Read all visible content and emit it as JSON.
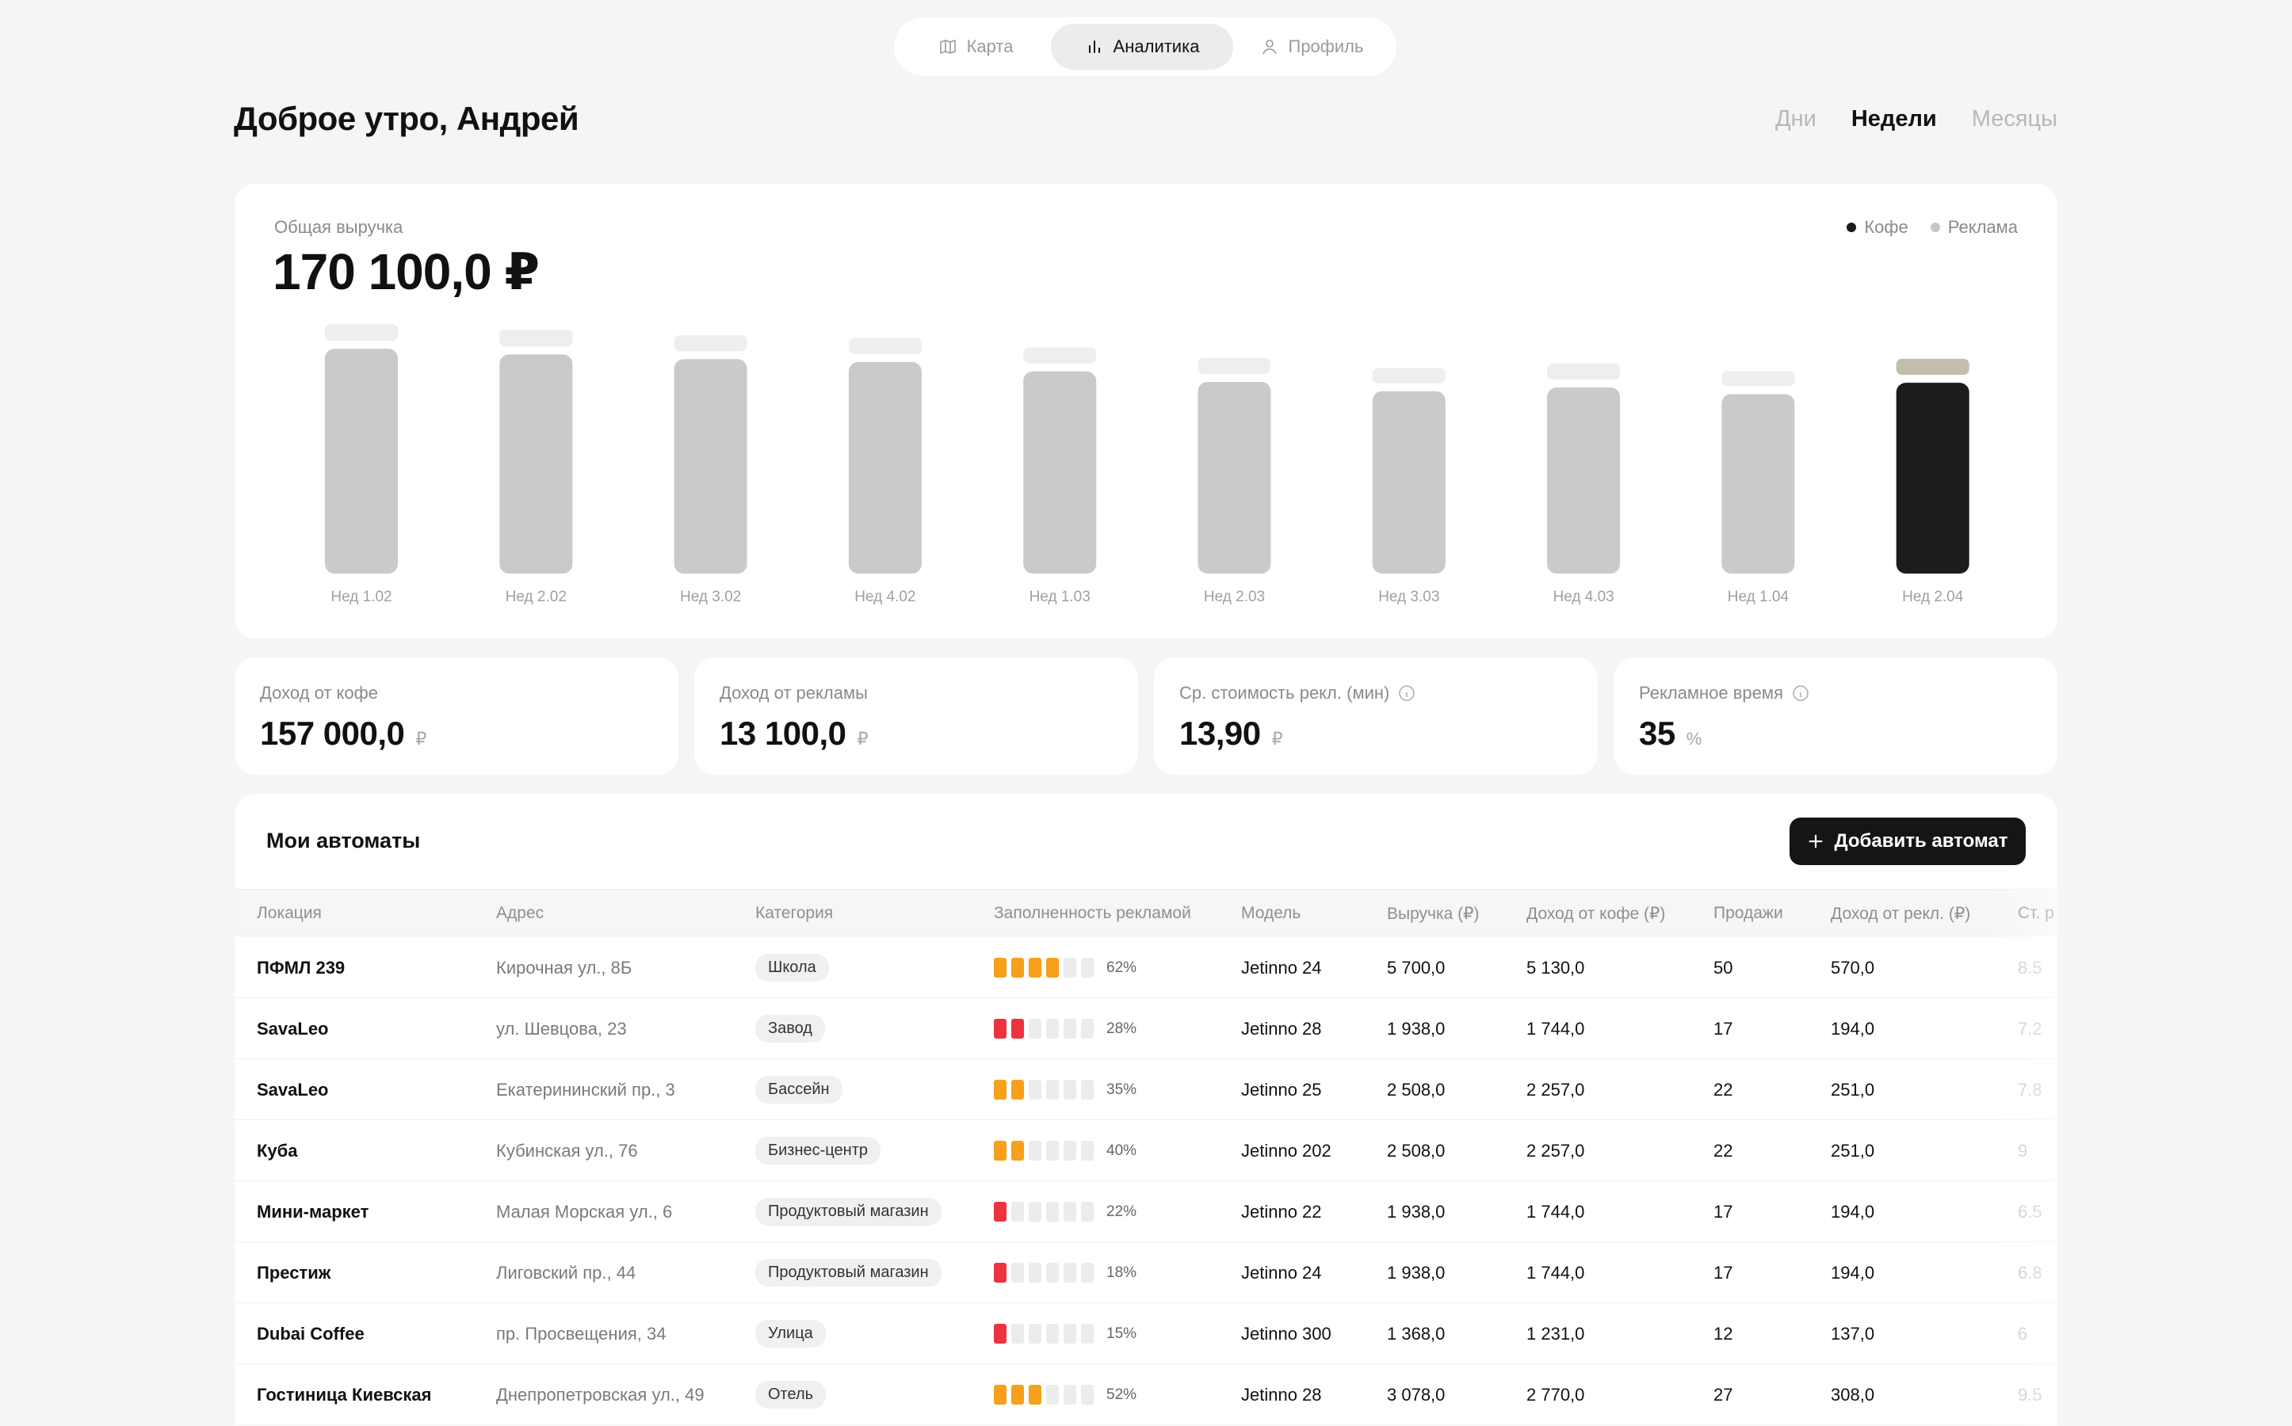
{
  "nav": {
    "items": [
      {
        "label": "Карта",
        "icon": "map-icon"
      },
      {
        "label": "Аналитика",
        "icon": "bar-chart-icon",
        "active": true
      },
      {
        "label": "Профиль",
        "icon": "user-icon"
      }
    ]
  },
  "header": {
    "greeting": "Доброе утро, Андрей",
    "periods": [
      "Дни",
      "Недели",
      "Месяцы"
    ],
    "active_period": "Недели"
  },
  "revenue": {
    "label": "Общая выручка",
    "value": "170 100,0 ₽",
    "legend": [
      {
        "label": "Кофе",
        "color": "#1a1a1a"
      },
      {
        "label": "Реклама",
        "color": "#c6c6c6"
      }
    ]
  },
  "chart_data": {
    "type": "bar",
    "stacked": true,
    "categories": [
      "Нед 1.02",
      "Нед 2.02",
      "Нед 3.02",
      "Нед 4.02",
      "Нед 1.03",
      "Нед 2.03",
      "Нед 3.03",
      "Нед 4.03",
      "Нед 1.04",
      "Нед 2.04"
    ],
    "series": [
      {
        "name": "Кофе",
        "values": [
          238,
          232,
          227,
          224,
          214,
          203,
          193,
          197,
          190,
          202
        ]
      },
      {
        "name": "Реклама",
        "values": [
          18,
          18,
          17,
          17,
          17,
          17,
          16,
          17,
          16,
          17
        ]
      }
    ],
    "highlight_index": 9,
    "colors": {
      "coffee": "#cacaca",
      "ad": "#eeeeec",
      "coffee_active": "#1c1c1c",
      "ad_active": "#c4bcae"
    },
    "ylim": [
      0,
      260
    ],
    "grid": false
  },
  "stats": [
    {
      "label": "Доход от кофе",
      "value": "157 000,0",
      "unit": "₽",
      "info": false
    },
    {
      "label": "Доход от рекламы",
      "value": "13 100,0",
      "unit": "₽",
      "info": false
    },
    {
      "label": "Ср. стоимость рекл. (мин)",
      "value": "13,90",
      "unit": "₽",
      "info": true
    },
    {
      "label": "Рекламное время",
      "value": "35",
      "unit": "%",
      "info": true
    }
  ],
  "machines": {
    "title": "Мои автоматы",
    "add_label": "Добавить автомат",
    "columns": [
      "Локация",
      "Адрес",
      "Категория",
      "Заполненность рекламой",
      "Модель",
      "Выручка (₽)",
      "Доход от кофе (₽)",
      "Продажи",
      "Доход от рекл. (₽)",
      "Ст. р"
    ],
    "rows": [
      {
        "location": "ПФМЛ 239",
        "address": "Кирочная ул., 8Б",
        "category": "Школа",
        "fill_pct": "62%",
        "fill_segments": 4,
        "fill_color": "#f7a01b",
        "model": "Jetinno 24",
        "revenue": "5 700,0",
        "coffee": "5 130,0",
        "sales": "50",
        "ad": "570,0",
        "cost": "8.5"
      },
      {
        "location": "SavaLeo",
        "address": "ул. Шевцова, 23",
        "category": "Завод",
        "fill_pct": "28%",
        "fill_segments": 2,
        "fill_color": "#ee3340",
        "model": "Jetinno 28",
        "revenue": "1 938,0",
        "coffee": "1 744,0",
        "sales": "17",
        "ad": "194,0",
        "cost": "7.2"
      },
      {
        "location": "SavaLeo",
        "address": "Екатерининский пр., 3",
        "category": "Бассейн",
        "fill_pct": "35%",
        "fill_segments": 2,
        "fill_color": "#f7a01b",
        "model": "Jetinno 25",
        "revenue": "2 508,0",
        "coffee": "2 257,0",
        "sales": "22",
        "ad": "251,0",
        "cost": "7.8"
      },
      {
        "location": "Куба",
        "address": "Кубинская ул., 76",
        "category": "Бизнес-центр",
        "fill_pct": "40%",
        "fill_segments": 2,
        "fill_color": "#f7a01b",
        "model": "Jetinno 202",
        "revenue": "2 508,0",
        "coffee": "2 257,0",
        "sales": "22",
        "ad": "251,0",
        "cost": "9"
      },
      {
        "location": "Мини-маркет",
        "address": "Малая Морская ул., 6",
        "category": "Продуктовый магазин",
        "fill_pct": "22%",
        "fill_segments": 1,
        "fill_color": "#ee3340",
        "model": "Jetinno 22",
        "revenue": "1 938,0",
        "coffee": "1 744,0",
        "sales": "17",
        "ad": "194,0",
        "cost": "6.5"
      },
      {
        "location": "Престиж",
        "address": "Лиговский пр., 44",
        "category": "Продуктовый магазин",
        "fill_pct": "18%",
        "fill_segments": 1,
        "fill_color": "#ee3340",
        "model": "Jetinno 24",
        "revenue": "1 938,0",
        "coffee": "1 744,0",
        "sales": "17",
        "ad": "194,0",
        "cost": "6.8"
      },
      {
        "location": "Dubai Coffee",
        "address": "пр. Просвещения, 34",
        "category": "Улица",
        "fill_pct": "15%",
        "fill_segments": 1,
        "fill_color": "#ee3340",
        "model": "Jetinno 300",
        "revenue": "1 368,0",
        "coffee": "1 231,0",
        "sales": "12",
        "ad": "137,0",
        "cost": "6"
      },
      {
        "location": "Гостиница Киевская",
        "address": "Днепропетровская ул., 49",
        "category": "Отель",
        "fill_pct": "52%",
        "fill_segments": 3,
        "fill_color": "#f7a01b",
        "model": "Jetinno 28",
        "revenue": "3 078,0",
        "coffee": "2 770,0",
        "sales": "27",
        "ad": "308,0",
        "cost": "9.5"
      }
    ]
  }
}
